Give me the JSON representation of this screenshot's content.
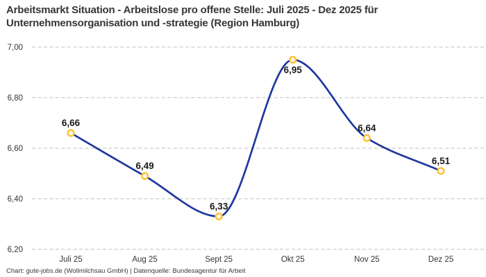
{
  "title": {
    "line1": "Arbeitsmarkt Situation - Arbeitslose pro offene Stelle: Juli 2025 - Dez 2025 für",
    "line2": "Unternehmensorganisation und -strategie (Region Hamburg)"
  },
  "footer": "Chart: gute-jobs.de (Wollmilchsau GmbH) | Datenquelle: Bundesagentur für Arbeit",
  "chart_data": {
    "type": "line",
    "title": "Arbeitsmarkt Situation - Arbeitslose pro offene Stelle: Juli 2025 - Dez 2025 für Unternehmensorganisation und -strategie (Region Hamburg)",
    "series_name": "Arbeitslose pro offene Stelle",
    "categories": [
      "Juli 25",
      "Aug 25",
      "Sept 25",
      "Okt 25",
      "Nov 25",
      "Dez 25"
    ],
    "values": [
      6.66,
      6.49,
      6.33,
      6.95,
      6.64,
      6.51
    ],
    "point_labels": [
      "6,66",
      "6,49",
      "6,33",
      "6,95",
      "6,64",
      "6,51"
    ],
    "point_label_positions": [
      "above",
      "above",
      "above",
      "below",
      "above",
      "above"
    ],
    "y_ticks": [
      {
        "label": "7,00",
        "value": 7.0
      },
      {
        "label": "6,80",
        "value": 6.8
      },
      {
        "label": "6,60",
        "value": 6.6
      },
      {
        "label": "6,40",
        "value": 6.4
      },
      {
        "label": "6,20",
        "value": 6.2
      }
    ],
    "ylim": [
      6.2,
      7.0
    ],
    "xlabel": "",
    "ylabel": "",
    "grid": "horizontal-dashed",
    "legend": "none",
    "curve": "monotone",
    "colors": {
      "line": "#1F379E",
      "marker_ring": "#FFC337",
      "marker_fill": "#ffffff",
      "grid": "#c9c9c9",
      "tick_text": "#333333",
      "point_label_text": "#1a1a1a",
      "title_text": "#363636"
    }
  }
}
